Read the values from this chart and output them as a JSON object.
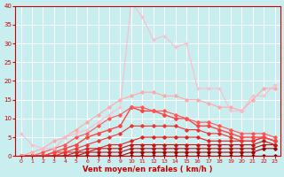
{
  "xlabel": "Vent moyen/en rafales ( km/h )",
  "background_color": "#c8eef0",
  "grid_color": "#ffffff",
  "xlim": [
    -0.5,
    23.5
  ],
  "ylim": [
    0,
    40
  ],
  "yticks": [
    0,
    5,
    10,
    15,
    20,
    25,
    30,
    35,
    40
  ],
  "xticks": [
    0,
    1,
    2,
    3,
    4,
    5,
    6,
    7,
    8,
    9,
    10,
    11,
    12,
    13,
    14,
    15,
    16,
    17,
    18,
    19,
    20,
    21,
    22,
    23
  ],
  "lines": [
    {
      "x": [
        0,
        1,
        2,
        3,
        4,
        5,
        6,
        7,
        8,
        9,
        10,
        11,
        12,
        13,
        14,
        15,
        16,
        17,
        18,
        19,
        20,
        21,
        22,
        23
      ],
      "y": [
        0,
        0,
        0,
        0,
        0,
        0,
        0,
        0,
        0,
        0,
        0,
        0,
        0,
        0,
        0,
        0,
        0,
        0,
        0,
        0,
        0,
        0,
        0,
        0
      ],
      "color": "#880000",
      "lw": 0.8,
      "marker": "D",
      "ms": 1.8
    },
    {
      "x": [
        0,
        1,
        2,
        3,
        4,
        5,
        6,
        7,
        8,
        9,
        10,
        11,
        12,
        13,
        14,
        15,
        16,
        17,
        18,
        19,
        20,
        21,
        22,
        23
      ],
      "y": [
        0,
        0,
        0,
        0,
        0,
        0,
        0,
        0,
        0,
        0,
        1,
        1,
        1,
        1,
        1,
        1,
        1,
        1,
        1,
        1,
        1,
        1,
        2,
        2
      ],
      "color": "#aa0000",
      "lw": 0.8,
      "marker": "D",
      "ms": 1.8
    },
    {
      "x": [
        0,
        1,
        2,
        3,
        4,
        5,
        6,
        7,
        8,
        9,
        10,
        11,
        12,
        13,
        14,
        15,
        16,
        17,
        18,
        19,
        20,
        21,
        22,
        23
      ],
      "y": [
        0,
        0,
        0,
        0,
        0,
        0,
        1,
        1,
        1,
        1,
        2,
        2,
        2,
        2,
        2,
        2,
        2,
        2,
        2,
        2,
        2,
        2,
        3,
        3
      ],
      "color": "#bb1111",
      "lw": 0.8,
      "marker": "D",
      "ms": 1.8
    },
    {
      "x": [
        0,
        1,
        2,
        3,
        4,
        5,
        6,
        7,
        8,
        9,
        10,
        11,
        12,
        13,
        14,
        15,
        16,
        17,
        18,
        19,
        20,
        21,
        22,
        23
      ],
      "y": [
        0,
        0,
        0,
        0,
        0,
        1,
        1,
        2,
        2,
        2,
        3,
        3,
        3,
        3,
        3,
        3,
        3,
        3,
        3,
        3,
        3,
        3,
        4,
        3
      ],
      "color": "#cc1111",
      "lw": 0.8,
      "marker": "D",
      "ms": 1.8
    },
    {
      "x": [
        0,
        1,
        2,
        3,
        4,
        5,
        6,
        7,
        8,
        9,
        10,
        11,
        12,
        13,
        14,
        15,
        16,
        17,
        18,
        19,
        20,
        21,
        22,
        23
      ],
      "y": [
        0,
        0,
        0,
        0,
        1,
        1,
        2,
        2,
        3,
        3,
        4,
        5,
        5,
        5,
        5,
        5,
        5,
        4,
        4,
        4,
        4,
        4,
        5,
        4
      ],
      "color": "#dd2222",
      "lw": 0.8,
      "marker": "D",
      "ms": 1.8
    },
    {
      "x": [
        0,
        1,
        2,
        3,
        4,
        5,
        6,
        7,
        8,
        9,
        10,
        11,
        12,
        13,
        14,
        15,
        16,
        17,
        18,
        19,
        20,
        21,
        22,
        23
      ],
      "y": [
        0,
        0,
        0,
        1,
        1,
        2,
        3,
        4,
        5,
        6,
        8,
        8,
        8,
        8,
        8,
        7,
        7,
        6,
        6,
        5,
        4,
        4,
        5,
        4
      ],
      "color": "#ee3333",
      "lw": 0.8,
      "marker": "D",
      "ms": 1.8
    },
    {
      "x": [
        0,
        1,
        2,
        3,
        4,
        5,
        6,
        7,
        8,
        9,
        10,
        11,
        12,
        13,
        14,
        15,
        16,
        17,
        18,
        19,
        20,
        21,
        22,
        23
      ],
      "y": [
        0,
        0,
        0,
        1,
        2,
        3,
        5,
        6,
        7,
        8,
        13,
        12,
        12,
        11,
        10,
        10,
        8,
        8,
        7,
        6,
        5,
        5,
        5,
        4
      ],
      "color": "#ff4444",
      "lw": 1.0,
      "marker": "D",
      "ms": 2.0
    },
    {
      "x": [
        0,
        1,
        2,
        3,
        4,
        5,
        6,
        7,
        8,
        9,
        10,
        11,
        12,
        13,
        14,
        15,
        16,
        17,
        18,
        19,
        20,
        21,
        22,
        23
      ],
      "y": [
        0,
        0,
        1,
        2,
        3,
        5,
        6,
        8,
        10,
        11,
        13,
        13,
        12,
        12,
        11,
        10,
        9,
        9,
        8,
        7,
        6,
        6,
        6,
        5
      ],
      "color": "#ff5555",
      "lw": 0.8,
      "marker": "D",
      "ms": 1.8
    },
    {
      "x": [
        0,
        1,
        2,
        3,
        4,
        5,
        6,
        7,
        8,
        9,
        10,
        11,
        12,
        13,
        14,
        15,
        16,
        17,
        18,
        19,
        20,
        21,
        22,
        23
      ],
      "y": [
        0,
        1,
        2,
        4,
        5,
        7,
        9,
        11,
        13,
        15,
        16,
        17,
        17,
        16,
        16,
        15,
        15,
        14,
        13,
        13,
        12,
        15,
        18,
        18
      ],
      "color": "#ffaaaa",
      "lw": 0.8,
      "marker": "D",
      "ms": 1.8
    },
    {
      "x": [
        0,
        1,
        2,
        3,
        4,
        5,
        6,
        7,
        8,
        9,
        10,
        11,
        12,
        13,
        14,
        15,
        16,
        17,
        18,
        19,
        20,
        21,
        22,
        23
      ],
      "y": [
        6,
        3,
        2,
        2,
        5,
        6,
        7,
        9,
        11,
        13,
        41,
        37,
        31,
        32,
        29,
        30,
        18,
        18,
        18,
        12,
        12,
        16,
        16,
        19
      ],
      "color": "#ffbbcc",
      "lw": 0.8,
      "marker": "+",
      "ms": 3.0
    }
  ]
}
